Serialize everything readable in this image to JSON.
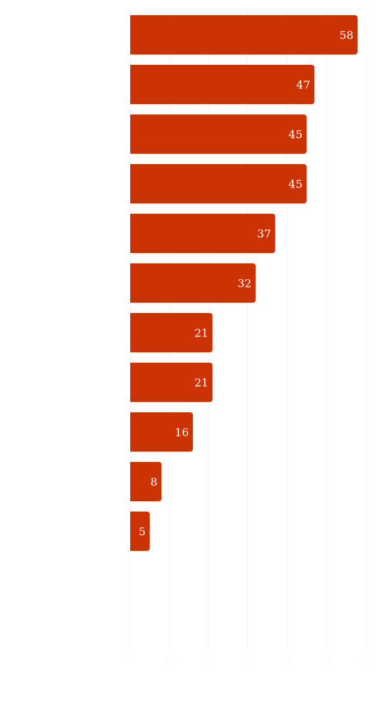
{
  "chart_data": {
    "type": "bar",
    "orientation": "horizontal",
    "categories": [
      "",
      "",
      "",
      "",
      "",
      "",
      "",
      "",
      "",
      "",
      "",
      "",
      ""
    ],
    "values": [
      58,
      47,
      45,
      45,
      37,
      32,
      21,
      21,
      16,
      8,
      5,
      0,
      0
    ],
    "xlim": [
      0,
      60
    ],
    "x_ticks": [
      0,
      10,
      20,
      30,
      40,
      50,
      60
    ],
    "grid": true,
    "bar_color": "#cc3304",
    "value_label_color": "#ffffff",
    "title": "",
    "xlabel": "",
    "ylabel": ""
  }
}
